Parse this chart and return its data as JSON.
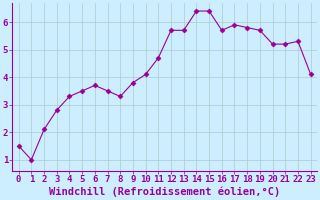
{
  "x": [
    0,
    1,
    2,
    3,
    4,
    5,
    6,
    7,
    8,
    9,
    10,
    11,
    12,
    13,
    14,
    15,
    16,
    17,
    18,
    19,
    20,
    21,
    22,
    23
  ],
  "y": [
    1.5,
    1.0,
    2.1,
    2.8,
    3.3,
    3.5,
    3.7,
    3.5,
    3.3,
    3.8,
    4.1,
    4.7,
    5.7,
    5.7,
    6.4,
    6.4,
    5.7,
    5.9,
    5.8,
    5.7,
    5.2,
    5.2,
    5.3,
    4.1
  ],
  "line_color": "#990099",
  "marker": "D",
  "marker_size": 2.5,
  "bg_color": "#cceeff",
  "grid_color": "#aacccc",
  "xlabel": "Windchill (Refroidissement éolien,°C)",
  "ylabel": "",
  "xlim": [
    -0.5,
    23.5
  ],
  "ylim": [
    0.6,
    6.7
  ],
  "yticks": [
    1,
    2,
    3,
    4,
    5,
    6
  ],
  "xticks": [
    0,
    1,
    2,
    3,
    4,
    5,
    6,
    7,
    8,
    9,
    10,
    11,
    12,
    13,
    14,
    15,
    16,
    17,
    18,
    19,
    20,
    21,
    22,
    23
  ],
  "tick_label_fontsize": 6.5,
  "xlabel_fontsize": 7.5,
  "label_color": "#990099",
  "spine_color": "#990099",
  "axis_bottom_color": "#990099"
}
